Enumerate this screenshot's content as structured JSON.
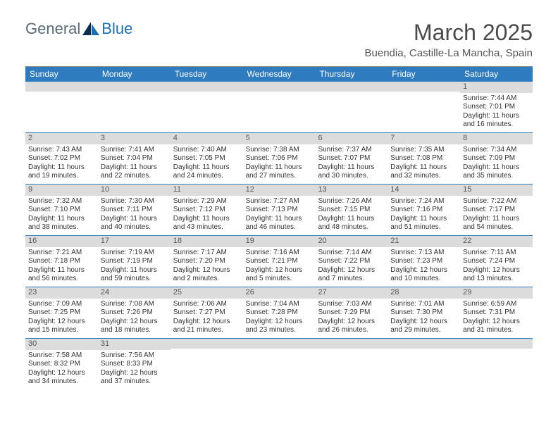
{
  "brand": {
    "part1": "General",
    "part2": "Blue"
  },
  "title": "March 2025",
  "location": "Buendia, Castille-La Mancha, Spain",
  "colors": {
    "header_bg": "#2f7bbf",
    "header_fg": "#ffffff",
    "daynum_bg": "#dcdcdc",
    "row_border": "#2f7bbf",
    "body_text": "#333333"
  },
  "weekdays": [
    "Sunday",
    "Monday",
    "Tuesday",
    "Wednesday",
    "Thursday",
    "Friday",
    "Saturday"
  ],
  "weeks": [
    [
      {
        "empty": true
      },
      {
        "empty": true
      },
      {
        "empty": true
      },
      {
        "empty": true
      },
      {
        "empty": true
      },
      {
        "empty": true
      },
      {
        "num": "1",
        "sunrise": "Sunrise: 7:44 AM",
        "sunset": "Sunset: 7:01 PM",
        "daylight": "Daylight: 11 hours and 16 minutes."
      }
    ],
    [
      {
        "num": "2",
        "sunrise": "Sunrise: 7:43 AM",
        "sunset": "Sunset: 7:02 PM",
        "daylight": "Daylight: 11 hours and 19 minutes."
      },
      {
        "num": "3",
        "sunrise": "Sunrise: 7:41 AM",
        "sunset": "Sunset: 7:04 PM",
        "daylight": "Daylight: 11 hours and 22 minutes."
      },
      {
        "num": "4",
        "sunrise": "Sunrise: 7:40 AM",
        "sunset": "Sunset: 7:05 PM",
        "daylight": "Daylight: 11 hours and 24 minutes."
      },
      {
        "num": "5",
        "sunrise": "Sunrise: 7:38 AM",
        "sunset": "Sunset: 7:06 PM",
        "daylight": "Daylight: 11 hours and 27 minutes."
      },
      {
        "num": "6",
        "sunrise": "Sunrise: 7:37 AM",
        "sunset": "Sunset: 7:07 PM",
        "daylight": "Daylight: 11 hours and 30 minutes."
      },
      {
        "num": "7",
        "sunrise": "Sunrise: 7:35 AM",
        "sunset": "Sunset: 7:08 PM",
        "daylight": "Daylight: 11 hours and 32 minutes."
      },
      {
        "num": "8",
        "sunrise": "Sunrise: 7:34 AM",
        "sunset": "Sunset: 7:09 PM",
        "daylight": "Daylight: 11 hours and 35 minutes."
      }
    ],
    [
      {
        "num": "9",
        "sunrise": "Sunrise: 7:32 AM",
        "sunset": "Sunset: 7:10 PM",
        "daylight": "Daylight: 11 hours and 38 minutes."
      },
      {
        "num": "10",
        "sunrise": "Sunrise: 7:30 AM",
        "sunset": "Sunset: 7:11 PM",
        "daylight": "Daylight: 11 hours and 40 minutes."
      },
      {
        "num": "11",
        "sunrise": "Sunrise: 7:29 AM",
        "sunset": "Sunset: 7:12 PM",
        "daylight": "Daylight: 11 hours and 43 minutes."
      },
      {
        "num": "12",
        "sunrise": "Sunrise: 7:27 AM",
        "sunset": "Sunset: 7:13 PM",
        "daylight": "Daylight: 11 hours and 46 minutes."
      },
      {
        "num": "13",
        "sunrise": "Sunrise: 7:26 AM",
        "sunset": "Sunset: 7:15 PM",
        "daylight": "Daylight: 11 hours and 48 minutes."
      },
      {
        "num": "14",
        "sunrise": "Sunrise: 7:24 AM",
        "sunset": "Sunset: 7:16 PM",
        "daylight": "Daylight: 11 hours and 51 minutes."
      },
      {
        "num": "15",
        "sunrise": "Sunrise: 7:22 AM",
        "sunset": "Sunset: 7:17 PM",
        "daylight": "Daylight: 11 hours and 54 minutes."
      }
    ],
    [
      {
        "num": "16",
        "sunrise": "Sunrise: 7:21 AM",
        "sunset": "Sunset: 7:18 PM",
        "daylight": "Daylight: 11 hours and 56 minutes."
      },
      {
        "num": "17",
        "sunrise": "Sunrise: 7:19 AM",
        "sunset": "Sunset: 7:19 PM",
        "daylight": "Daylight: 11 hours and 59 minutes."
      },
      {
        "num": "18",
        "sunrise": "Sunrise: 7:17 AM",
        "sunset": "Sunset: 7:20 PM",
        "daylight": "Daylight: 12 hours and 2 minutes."
      },
      {
        "num": "19",
        "sunrise": "Sunrise: 7:16 AM",
        "sunset": "Sunset: 7:21 PM",
        "daylight": "Daylight: 12 hours and 5 minutes."
      },
      {
        "num": "20",
        "sunrise": "Sunrise: 7:14 AM",
        "sunset": "Sunset: 7:22 PM",
        "daylight": "Daylight: 12 hours and 7 minutes."
      },
      {
        "num": "21",
        "sunrise": "Sunrise: 7:13 AM",
        "sunset": "Sunset: 7:23 PM",
        "daylight": "Daylight: 12 hours and 10 minutes."
      },
      {
        "num": "22",
        "sunrise": "Sunrise: 7:11 AM",
        "sunset": "Sunset: 7:24 PM",
        "daylight": "Daylight: 12 hours and 13 minutes."
      }
    ],
    [
      {
        "num": "23",
        "sunrise": "Sunrise: 7:09 AM",
        "sunset": "Sunset: 7:25 PM",
        "daylight": "Daylight: 12 hours and 15 minutes."
      },
      {
        "num": "24",
        "sunrise": "Sunrise: 7:08 AM",
        "sunset": "Sunset: 7:26 PM",
        "daylight": "Daylight: 12 hours and 18 minutes."
      },
      {
        "num": "25",
        "sunrise": "Sunrise: 7:06 AM",
        "sunset": "Sunset: 7:27 PM",
        "daylight": "Daylight: 12 hours and 21 minutes."
      },
      {
        "num": "26",
        "sunrise": "Sunrise: 7:04 AM",
        "sunset": "Sunset: 7:28 PM",
        "daylight": "Daylight: 12 hours and 23 minutes."
      },
      {
        "num": "27",
        "sunrise": "Sunrise: 7:03 AM",
        "sunset": "Sunset: 7:29 PM",
        "daylight": "Daylight: 12 hours and 26 minutes."
      },
      {
        "num": "28",
        "sunrise": "Sunrise: 7:01 AM",
        "sunset": "Sunset: 7:30 PM",
        "daylight": "Daylight: 12 hours and 29 minutes."
      },
      {
        "num": "29",
        "sunrise": "Sunrise: 6:59 AM",
        "sunset": "Sunset: 7:31 PM",
        "daylight": "Daylight: 12 hours and 31 minutes."
      }
    ],
    [
      {
        "num": "30",
        "sunrise": "Sunrise: 7:58 AM",
        "sunset": "Sunset: 8:32 PM",
        "daylight": "Daylight: 12 hours and 34 minutes."
      },
      {
        "num": "31",
        "sunrise": "Sunrise: 7:56 AM",
        "sunset": "Sunset: 8:33 PM",
        "daylight": "Daylight: 12 hours and 37 minutes."
      },
      {
        "empty": true
      },
      {
        "empty": true
      },
      {
        "empty": true
      },
      {
        "empty": true
      },
      {
        "empty": true
      }
    ]
  ]
}
